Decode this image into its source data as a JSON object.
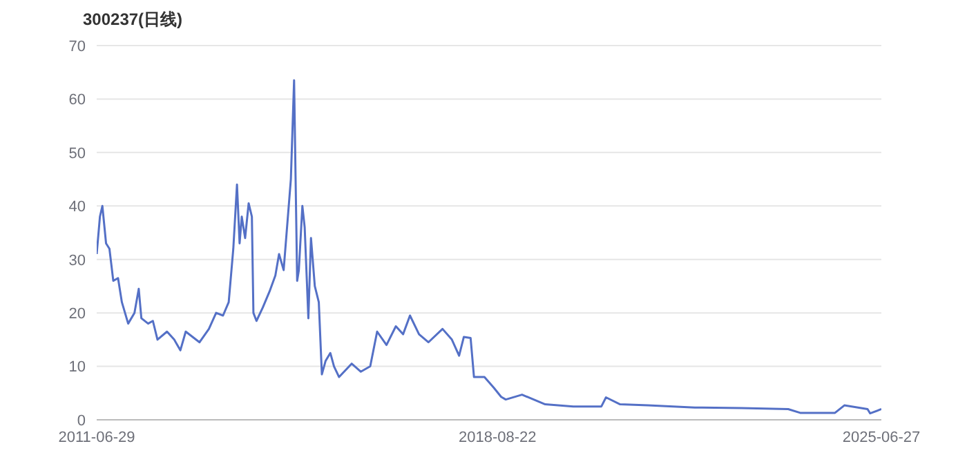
{
  "chart_data": {
    "type": "line",
    "title": "300237(日线)",
    "x": [
      "2011-06-29",
      "2011-07-20",
      "2011-08-05",
      "2011-08-29",
      "2011-09-20",
      "2011-10-15",
      "2011-11-15",
      "2011-12-10",
      "2012-01-20",
      "2012-03-01",
      "2012-03-29",
      "2012-04-15",
      "2012-05-29",
      "2012-06-29",
      "2012-07-29",
      "2012-09-29",
      "2012-11-15",
      "2012-12-25",
      "2013-01-29",
      "2013-03-15",
      "2013-04-29",
      "2013-06-29",
      "2013-08-15",
      "2013-09-29",
      "2013-11-05",
      "2013-12-05",
      "2013-12-29",
      "2014-01-15",
      "2014-01-29",
      "2014-02-20",
      "2014-03-15",
      "2014-04-05",
      "2014-04-15",
      "2014-05-05",
      "2014-06-15",
      "2014-07-29",
      "2014-09-05",
      "2014-09-29",
      "2014-10-29",
      "2014-12-15",
      "2015-01-05",
      "2015-01-25",
      "2015-02-05",
      "2015-02-28",
      "2015-03-15",
      "2015-04-08",
      "2015-04-25",
      "2015-05-20",
      "2015-06-15",
      "2015-07-05",
      "2015-07-29",
      "2015-08-29",
      "2015-09-22",
      "2015-10-25",
      "2016-01-15",
      "2016-03-15",
      "2016-05-15",
      "2016-06-29",
      "2016-08-29",
      "2016-10-29",
      "2016-12-15",
      "2017-01-29",
      "2017-03-29",
      "2017-05-29",
      "2017-08-29",
      "2017-10-29",
      "2017-12-15",
      "2018-01-15",
      "2018-02-28",
      "2018-03-22",
      "2018-05-29",
      "2018-07-29",
      "2018-09-15",
      "2018-10-15",
      "2019-01-29",
      "2019-06-29",
      "2019-12-29",
      "2020-06-29",
      "2020-07-29",
      "2020-10-29",
      "2021-04-29",
      "2022-02-28",
      "2022-12-29",
      "2023-10-29",
      "2024-01-15",
      "2024-08-29",
      "2024-10-29",
      "2025-03-29",
      "2025-04-15",
      "2025-06-27"
    ],
    "series": [
      {
        "color": "#5470c6",
        "values": [
          31,
          38,
          40,
          33,
          32,
          26,
          26.5,
          22,
          18,
          20,
          24.5,
          19,
          18,
          18.5,
          15,
          16.5,
          15,
          13,
          16.5,
          15.5,
          14.5,
          17,
          20,
          19.5,
          22,
          32,
          44,
          33,
          38,
          34,
          40.5,
          38,
          20,
          18.5,
          21,
          24,
          27,
          31,
          28,
          45,
          63.5,
          26,
          28,
          40,
          36,
          19,
          34,
          25,
          22,
          8.5,
          11,
          12.5,
          10,
          8,
          10.5,
          9,
          10,
          16.5,
          14,
          17.5,
          16,
          19.5,
          16,
          14.5,
          17,
          15,
          12,
          15.5,
          15.3,
          8,
          8,
          6,
          4.3,
          3.8,
          4.7,
          2.9,
          2.5,
          2.5,
          4.2,
          2.9,
          2.7,
          2.3,
          2.2,
          2.0,
          1.3,
          1.3,
          2.7,
          2.0,
          1.2,
          2.0
        ]
      }
    ],
    "xlim": [
      "2011-06-29",
      "2025-06-27"
    ],
    "xticks": [
      "2011-06-29",
      "2018-08-22",
      "2025-06-27"
    ],
    "ylim": [
      0,
      70
    ],
    "yticks": [
      0,
      10,
      20,
      30,
      40,
      50,
      60,
      70
    ],
    "grid": "y",
    "marker": "none",
    "line_style": "solid"
  }
}
